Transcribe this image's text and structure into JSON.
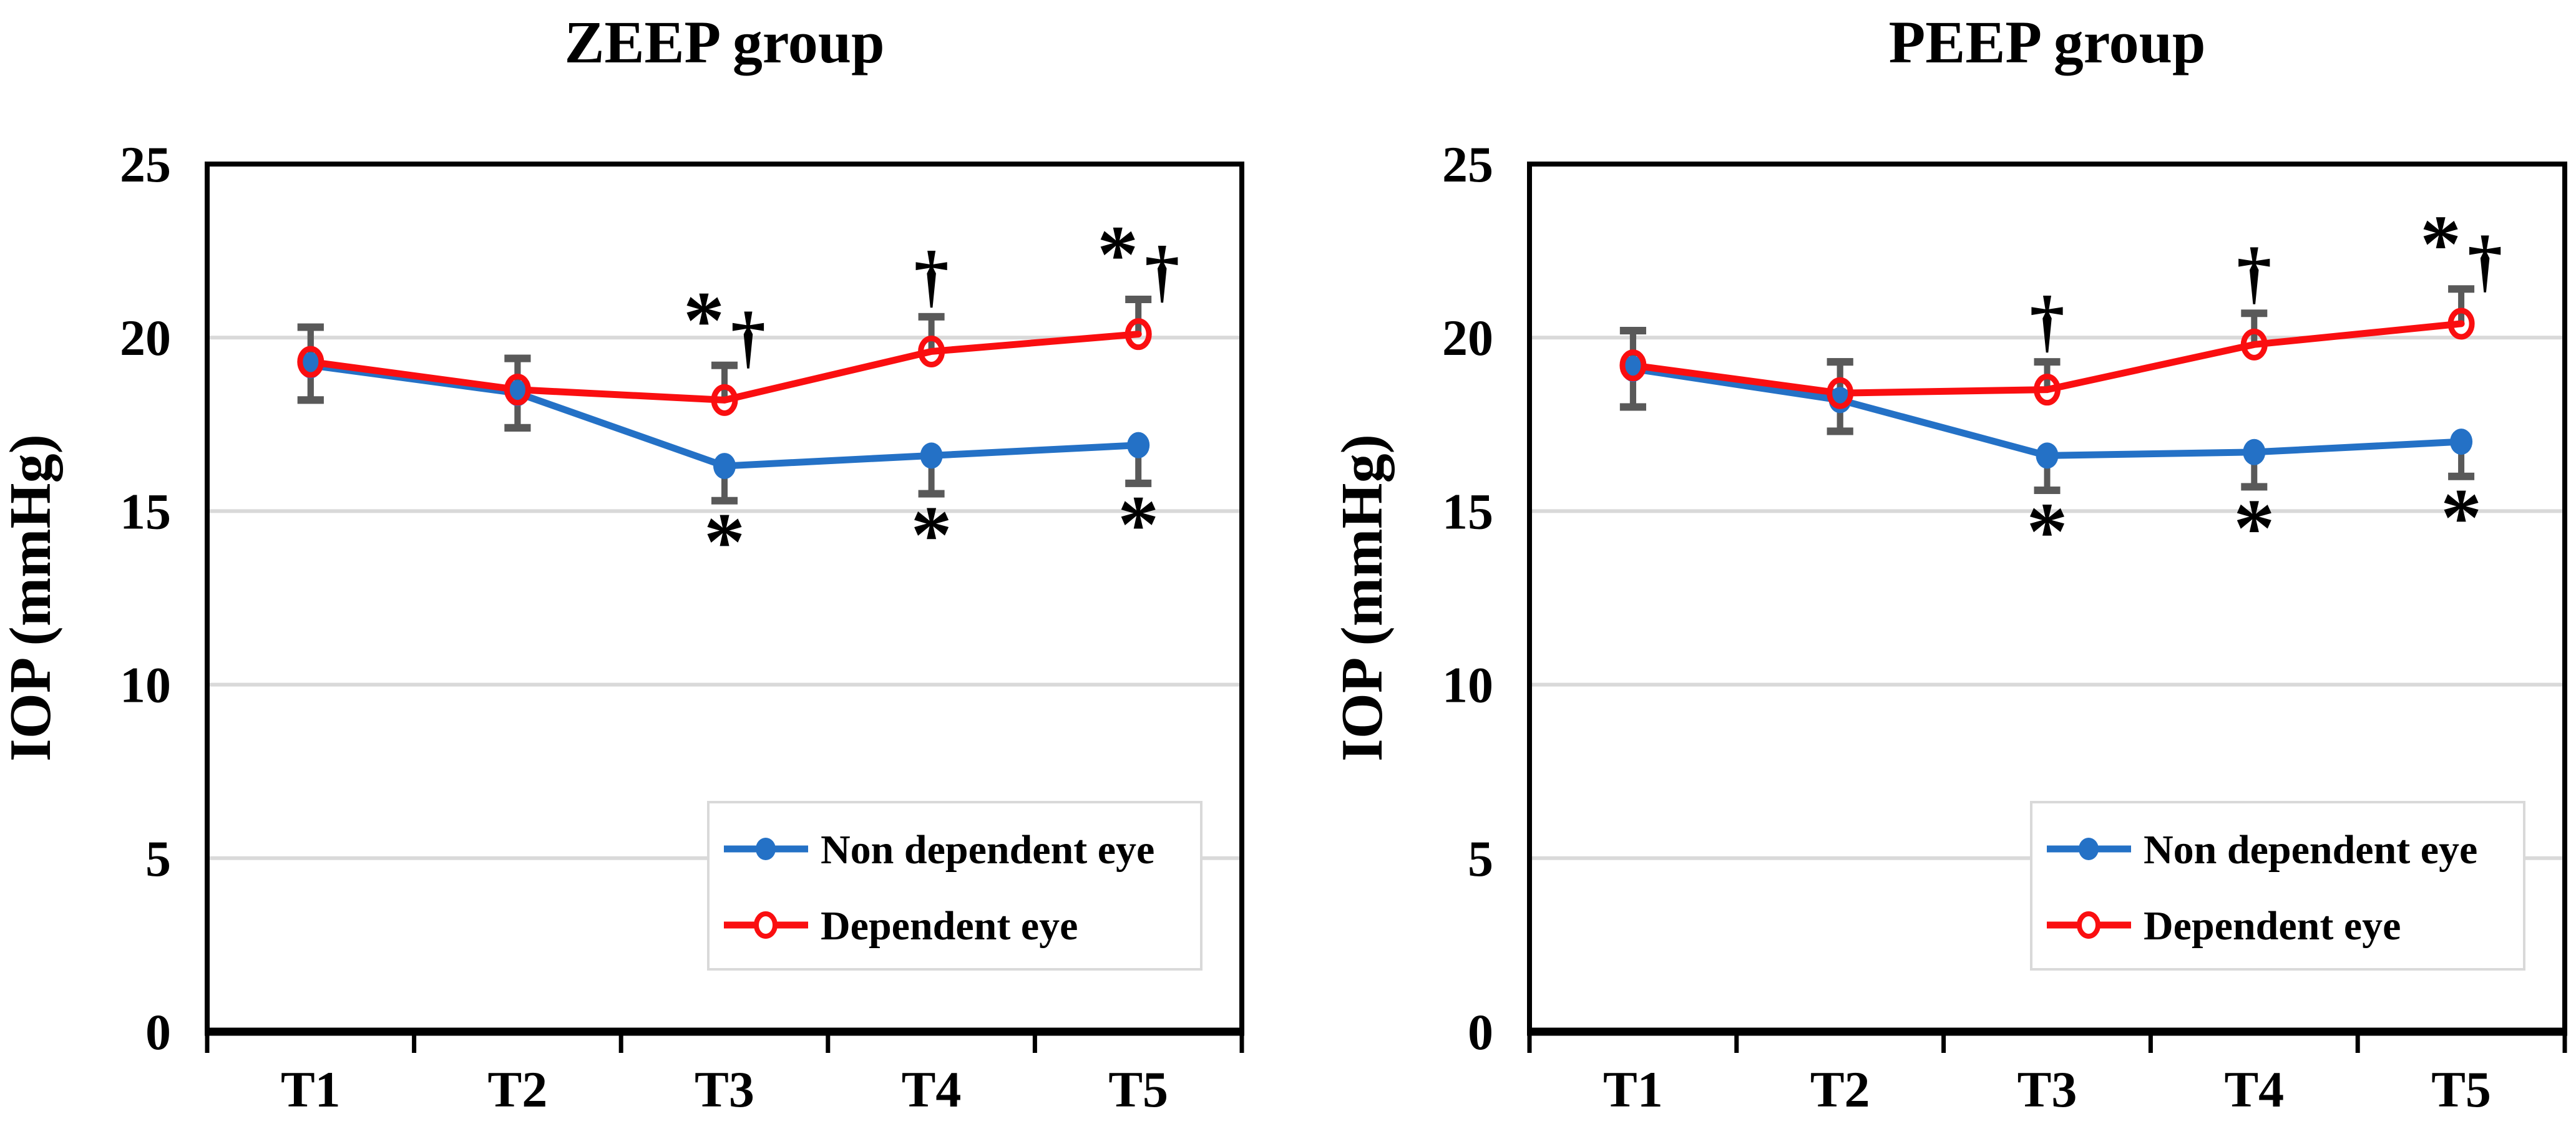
{
  "styles": {
    "background": "#FFFFFF",
    "axis_color": "#000000",
    "gridline_color": "#D9D9D9",
    "error_bar_color": "#595959",
    "legend_border_color": "#D9D9D9",
    "text_color": "#000000",
    "non_dependent_blue": "#2471C6",
    "dependent_red": "#FA0E10"
  },
  "chart_data": [
    {
      "type": "line",
      "title": "ZEEP group",
      "y_axis": {
        "label": "IOP (mmHg)",
        "min": 0,
        "max": 25,
        "ticks": [
          0,
          5,
          10,
          15,
          20,
          25
        ],
        "gridlines": [
          5,
          10,
          15,
          20
        ]
      },
      "x_axis": {
        "categories": [
          "T1",
          "T2",
          "T3",
          "T4",
          "T5"
        ]
      },
      "legend_position": "inside-bottom-right",
      "series": [
        {
          "name": "Non dependent eye",
          "marker": "filled-circle",
          "color": "#2471C6",
          "values": [
            19.2,
            18.4,
            16.3,
            16.6,
            16.9
          ],
          "error_low": [
            18.2,
            17.4,
            15.3,
            15.5,
            15.8
          ],
          "error_high": [
            20.3,
            19.4,
            null,
            null,
            null
          ]
        },
        {
          "name": "Dependent eye",
          "marker": "open-circle",
          "color": "#FA0E10",
          "values": [
            19.3,
            18.5,
            18.2,
            19.6,
            20.1
          ],
          "error_low": [
            18.2,
            17.4,
            null,
            null,
            null
          ],
          "error_high": [
            20.3,
            19.4,
            19.2,
            20.6,
            21.1
          ]
        }
      ],
      "annotations": [
        {
          "category": "T3",
          "side": "above",
          "series": "Dependent eye",
          "text": "*†"
        },
        {
          "category": "T4",
          "side": "above",
          "series": "Dependent eye",
          "text": "†"
        },
        {
          "category": "T5",
          "side": "above",
          "series": "Dependent eye",
          "text": "*†"
        },
        {
          "category": "T3",
          "side": "below",
          "series": "Non dependent eye",
          "text": "*"
        },
        {
          "category": "T4",
          "side": "below",
          "series": "Non dependent eye",
          "text": "*"
        },
        {
          "category": "T5",
          "side": "below",
          "series": "Non dependent eye",
          "text": "*"
        }
      ]
    },
    {
      "type": "line",
      "title": "PEEP group",
      "y_axis": {
        "label": "IOP (mmHg)",
        "min": 0,
        "max": 25,
        "ticks": [
          0,
          5,
          10,
          15,
          20,
          25
        ],
        "gridlines": [
          5,
          10,
          15,
          20
        ]
      },
      "x_axis": {
        "categories": [
          "T1",
          "T2",
          "T3",
          "T4",
          "T5"
        ]
      },
      "legend_position": "inside-bottom-right",
      "series": [
        {
          "name": "Non dependent eye",
          "marker": "filled-circle",
          "color": "#2471C6",
          "values": [
            19.1,
            18.2,
            16.6,
            16.7,
            17.0
          ],
          "error_low": [
            18.0,
            17.3,
            15.6,
            15.7,
            16.0
          ],
          "error_high": [
            20.2,
            19.3,
            null,
            null,
            null
          ]
        },
        {
          "name": "Dependent eye",
          "marker": "open-circle",
          "color": "#FA0E10",
          "values": [
            19.2,
            18.4,
            18.5,
            19.8,
            20.4
          ],
          "error_low": [
            18.0,
            17.3,
            null,
            null,
            null
          ],
          "error_high": [
            20.2,
            19.3,
            19.3,
            20.7,
            21.4
          ]
        }
      ],
      "annotations": [
        {
          "category": "T3",
          "side": "above",
          "series": "Dependent eye",
          "text": "†"
        },
        {
          "category": "T4",
          "side": "above",
          "series": "Dependent eye",
          "text": "†"
        },
        {
          "category": "T5",
          "side": "above",
          "series": "Dependent eye",
          "text": "*†"
        },
        {
          "category": "T3",
          "side": "below",
          "series": "Non dependent eye",
          "text": "*"
        },
        {
          "category": "T4",
          "side": "below",
          "series": "Non dependent eye",
          "text": "*"
        },
        {
          "category": "T5",
          "side": "below",
          "series": "Non dependent eye",
          "text": "*"
        }
      ]
    }
  ]
}
